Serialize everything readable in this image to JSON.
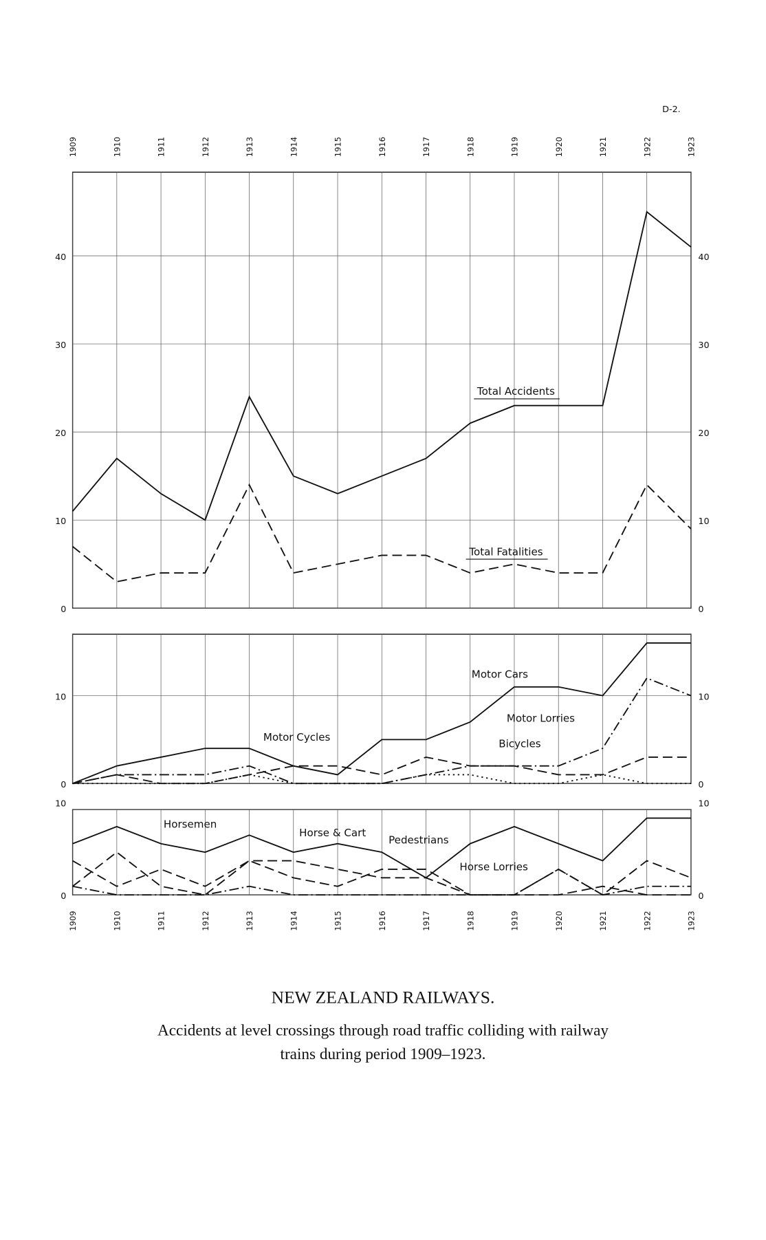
{
  "page_label": "D-2.",
  "caption": {
    "title": "NEW ZEALAND RAILWAYS.",
    "subtitle": [
      "Accidents at level crossings through road traffic colliding with railway",
      "trains during period 1909–1923."
    ]
  },
  "chart_data": [
    {
      "type": "line",
      "x_axis": "top",
      "grid": true,
      "x": [
        1909,
        1910,
        1911,
        1912,
        1913,
        1914,
        1915,
        1916,
        1917,
        1918,
        1919,
        1920,
        1921,
        1922,
        1923
      ],
      "xlim": [
        1909,
        1923
      ],
      "ylim": [
        0,
        49.5
      ],
      "yticks": [
        0,
        10,
        20,
        30,
        40
      ],
      "series": [
        {
          "name": "Total Accidents",
          "color": "#111111",
          "dash": "solid",
          "values": [
            11,
            17,
            13,
            10,
            24,
            15,
            13,
            15,
            17,
            21,
            23,
            23,
            23,
            45,
            41
          ]
        },
        {
          "name": "Total Fatalities",
          "color": "#111111",
          "dash": "dash",
          "values": [
            7,
            3,
            4,
            4,
            14,
            4,
            5,
            6,
            6,
            4,
            5,
            4,
            4,
            14,
            9
          ]
        }
      ]
    },
    {
      "type": "line",
      "x_axis": "none",
      "grid": true,
      "x": [
        1909,
        1910,
        1911,
        1912,
        1913,
        1914,
        1915,
        1916,
        1917,
        1918,
        1919,
        1920,
        1921,
        1922,
        1923
      ],
      "xlim": [
        1909,
        1923
      ],
      "ylim": [
        0,
        17
      ],
      "yticks": [
        0,
        10
      ],
      "series": [
        {
          "name": "Motor Cars",
          "color": "#111111",
          "dash": "solid",
          "values": [
            0,
            2,
            3,
            4,
            4,
            2,
            1,
            5,
            5,
            7,
            11,
            11,
            10,
            16,
            16
          ]
        },
        {
          "name": "Motor Lorries",
          "color": "#111111",
          "dash": "dashdot",
          "values": [
            0,
            1,
            1,
            1,
            2,
            0,
            0,
            0,
            1,
            2,
            2,
            2,
            4,
            12,
            10
          ]
        },
        {
          "name": "Motor Cycles",
          "color": "#111111",
          "dash": "dash",
          "values": [
            0,
            1,
            0,
            0,
            1,
            2,
            2,
            1,
            3,
            2,
            2,
            1,
            1,
            3,
            3
          ]
        },
        {
          "name": "Bicycles",
          "color": "#111111",
          "dash": "dot",
          "values": [
            0,
            0,
            0,
            0,
            1,
            0,
            0,
            0,
            1,
            1,
            0,
            0,
            1,
            0,
            0
          ]
        }
      ]
    },
    {
      "type": "line",
      "x_axis": "bottom",
      "grid": true,
      "x": [
        1909,
        1910,
        1911,
        1912,
        1913,
        1914,
        1915,
        1916,
        1917,
        1918,
        1919,
        1920,
        1921,
        1922,
        1923
      ],
      "xlim": [
        1909,
        1923
      ],
      "ylim": [
        0,
        10
      ],
      "yticks": [
        0,
        10
      ],
      "series": [
        {
          "name": "Horsemen",
          "color": "#111111",
          "dash": "dash",
          "values": [
            1,
            5,
            1,
            0,
            4,
            2,
            1,
            3,
            3,
            0,
            0,
            0,
            1,
            0,
            0
          ]
        },
        {
          "name": "Horse & Cart",
          "color": "#111111",
          "dash": "solid",
          "values": [
            6,
            8,
            6,
            5,
            7,
            5,
            6,
            5,
            2,
            6,
            8,
            6,
            4,
            9,
            9
          ]
        },
        {
          "name": "Pedestrians",
          "color": "#111111",
          "dash": "dash",
          "values": [
            4,
            1,
            3,
            1,
            4,
            4,
            3,
            2,
            2,
            0,
            0,
            3,
            0,
            4,
            2
          ]
        },
        {
          "name": "Horse Lorries",
          "color": "#111111",
          "dash": "dashdot",
          "values": [
            1,
            0,
            0,
            0,
            1,
            0,
            0,
            0,
            0,
            0,
            0,
            3,
            0,
            1,
            1
          ]
        }
      ]
    }
  ]
}
